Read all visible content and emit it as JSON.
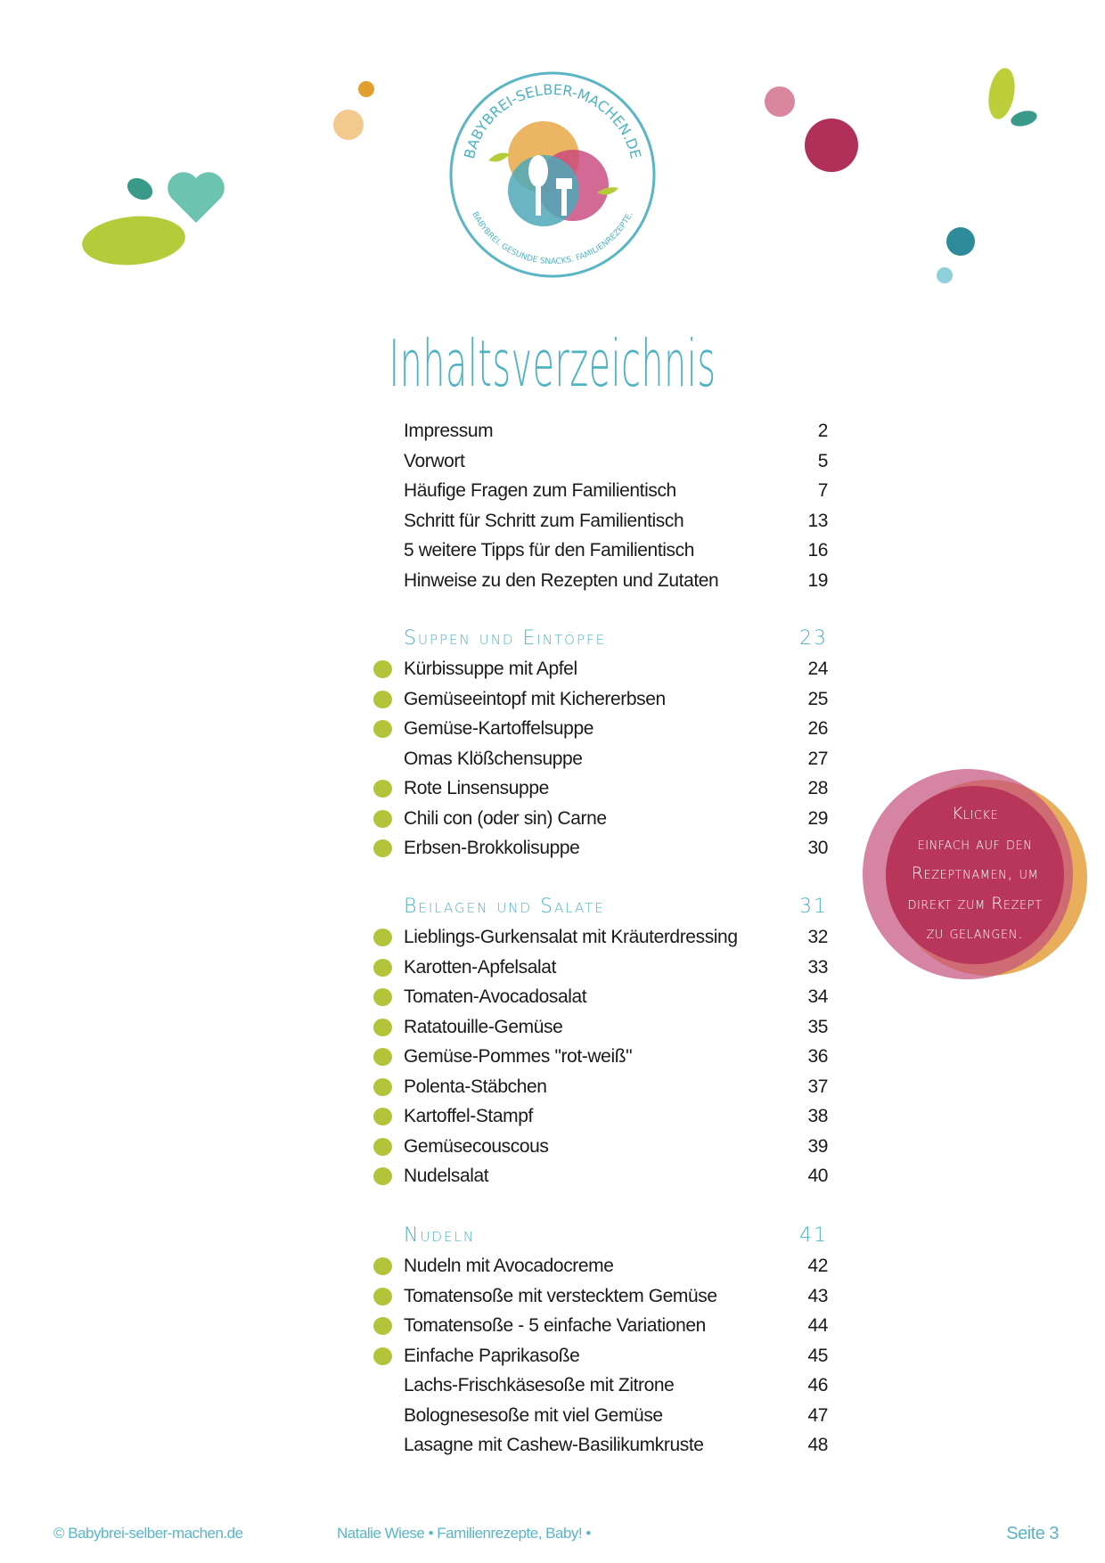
{
  "logo": {
    "top_text": "BABYBREI-SELBER-MACHEN.DE",
    "bottom_text": "BABYBREI. GESUNDE SNACKS. FAMILIENREZEPTE."
  },
  "title": "Inhaltsverzeichnis",
  "colors": {
    "accent": "#4fb3c4",
    "bullet": "#b3c43a",
    "callout": "#b8365a"
  },
  "intro_items": [
    {
      "label": "Impressum",
      "page": "2"
    },
    {
      "label": "Vorwort",
      "page": "5"
    },
    {
      "label": "Häufige Fragen zum Familientisch",
      "page": "7"
    },
    {
      "label": "Schritt für Schritt zum Familientisch",
      "page": "13"
    },
    {
      "label": "5 weitere Tipps für den Familientisch",
      "page": "16"
    },
    {
      "label": "Hinweise zu den Rezepten und Zutaten",
      "page": "19"
    }
  ],
  "sections": [
    {
      "title": "Suppen und Eintöpfe",
      "page": "23",
      "items": [
        {
          "label": "Kürbissuppe mit Apfel",
          "page": "24",
          "bullet": true
        },
        {
          "label": "Gemüseeintopf mit Kichererbsen",
          "page": "25",
          "bullet": true
        },
        {
          "label": "Gemüse-Kartoffelsuppe",
          "page": "26",
          "bullet": true
        },
        {
          "label": "Omas Klößchensuppe",
          "page": "27",
          "bullet": false
        },
        {
          "label": "Rote Linsensuppe",
          "page": "28",
          "bullet": true
        },
        {
          "label": "Chili con (oder sin) Carne",
          "page": "29",
          "bullet": true
        },
        {
          "label": "Erbsen-Brokkolisuppe",
          "page": "30",
          "bullet": true
        }
      ]
    },
    {
      "title": "Beilagen und Salate",
      "page": "31",
      "items": [
        {
          "label": "Lieblings-Gurkensalat mit Kräuterdressing",
          "page": "32",
          "bullet": true
        },
        {
          "label": "Karotten-Apfelsalat",
          "page": "33",
          "bullet": true
        },
        {
          "label": "Tomaten-Avocadosalat",
          "page": "34",
          "bullet": true
        },
        {
          "label": "Ratatouille-Gemüse",
          "page": "35",
          "bullet": true
        },
        {
          "label": "Gemüse-Pommes \"rot-weiß\"",
          "page": "36",
          "bullet": true
        },
        {
          "label": "Polenta-Stäbchen",
          "page": "37",
          "bullet": true
        },
        {
          "label": "Kartoffel-Stampf",
          "page": "38",
          "bullet": true
        },
        {
          "label": "Gemüsecouscous",
          "page": "39",
          "bullet": true
        },
        {
          "label": "Nudelsalat",
          "page": "40",
          "bullet": true
        }
      ]
    },
    {
      "title": "Nudeln",
      "page": "41",
      "items": [
        {
          "label": "Nudeln mit Avocadocreme",
          "page": "42",
          "bullet": true
        },
        {
          "label": "Tomatensoße mit verstecktem Gemüse",
          "page": "43",
          "bullet": true
        },
        {
          "label": "Tomatensoße - 5 einfache Variationen",
          "page": "44",
          "bullet": true
        },
        {
          "label": "Einfache Paprikasoße",
          "page": "45",
          "bullet": true
        },
        {
          "label": "Lachs-Frischkäsesoße mit Zitrone",
          "page": "46",
          "bullet": false
        },
        {
          "label": "Bolognesesoße mit viel Gemüse",
          "page": "47",
          "bullet": false
        },
        {
          "label": "Lasagne mit Cashew-Basilikumkruste",
          "page": "48",
          "bullet": false
        }
      ]
    }
  ],
  "callout": {
    "lines": [
      "Klicke",
      "einfach auf den",
      "Rezeptnamen, um",
      "direkt zum Rezept",
      "zu gelangen."
    ]
  },
  "footer": {
    "copyright": "© Babybrei-selber-machen.de",
    "author": "Natalie Wiese • Familienrezepte, Baby! •",
    "page": "Seite 3"
  }
}
